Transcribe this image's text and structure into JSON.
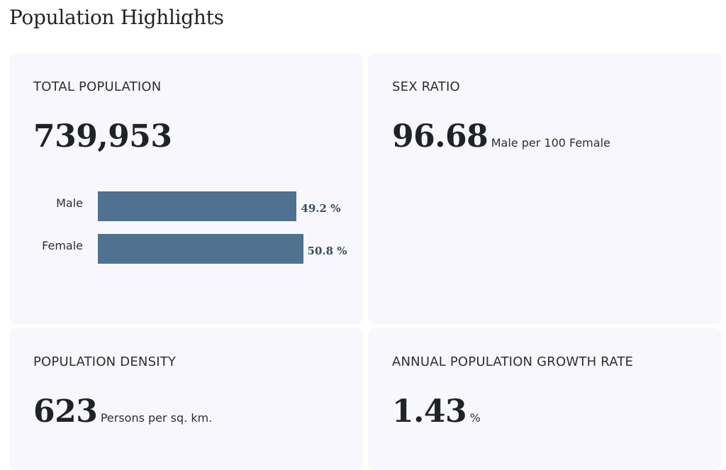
{
  "page": {
    "title": "Population Highlights"
  },
  "total_population": {
    "label": "TOTAL POPULATION",
    "value": "739,953",
    "breakdown": [
      {
        "label": "Male",
        "percent": 49.2,
        "display": "49.2 %"
      },
      {
        "label": "Female",
        "percent": 50.8,
        "display": "50.8 %"
      }
    ],
    "bar_color": "#4f7290"
  },
  "sex_ratio": {
    "label": "SEX RATIO",
    "value": "96.68",
    "unit": "Male per 100 Female"
  },
  "population_density": {
    "label": "POPULATION DENSITY",
    "value": "623",
    "unit": "Persons per sq. km."
  },
  "growth_rate": {
    "label": "ANNUAL POPULATION GROWTH RATE",
    "value": "1.43",
    "unit": "%"
  },
  "colors": {
    "card_background": "#f7f7fd",
    "bar": "#4f7290"
  }
}
